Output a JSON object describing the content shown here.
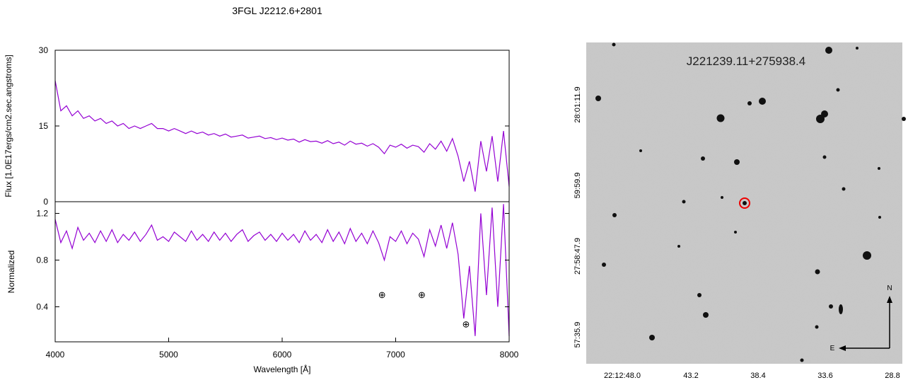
{
  "chart_data": [
    {
      "type": "line",
      "title": "3FGL J2212.6+2801",
      "ylabel": "Flux [1.0E17ergs/cm2.sec.angstroms]",
      "color": "#9400d3",
      "xlim": [
        4000,
        8000
      ],
      "ylim": [
        0,
        30
      ],
      "yticks": [
        0,
        15,
        30
      ],
      "x": [
        4000,
        4050,
        4100,
        4150,
        4200,
        4250,
        4300,
        4350,
        4400,
        4450,
        4500,
        4550,
        4600,
        4650,
        4700,
        4750,
        4800,
        4850,
        4900,
        4950,
        5000,
        5050,
        5100,
        5150,
        5200,
        5250,
        5300,
        5350,
        5400,
        5450,
        5500,
        5550,
        5600,
        5650,
        5700,
        5750,
        5800,
        5850,
        5900,
        5950,
        6000,
        6050,
        6100,
        6150,
        6200,
        6250,
        6300,
        6350,
        6400,
        6450,
        6500,
        6550,
        6600,
        6650,
        6700,
        6750,
        6800,
        6850,
        6900,
        6950,
        7000,
        7050,
        7100,
        7150,
        7200,
        7250,
        7300,
        7350,
        7400,
        7450,
        7500,
        7550,
        7600,
        7650,
        7700,
        7750,
        7800,
        7850,
        7900,
        7950,
        8000
      ],
      "values": [
        24,
        18,
        19,
        17,
        18,
        16.5,
        17,
        16,
        16.5,
        15.5,
        16,
        15,
        15.5,
        14.5,
        15,
        14.5,
        15,
        15.5,
        14.5,
        14.5,
        14,
        14.5,
        14,
        13.5,
        14,
        13.5,
        13.8,
        13.2,
        13.5,
        13,
        13.4,
        12.8,
        13,
        13.2,
        12.6,
        12.8,
        13,
        12.5,
        12.7,
        12.3,
        12.6,
        12.2,
        12.4,
        11.8,
        12.3,
        11.9,
        12,
        11.6,
        12.1,
        11.5,
        11.8,
        11.2,
        12,
        11.4,
        11.6,
        11,
        11.5,
        10.8,
        9.5,
        11.2,
        10.8,
        11.4,
        10.6,
        11.2,
        10.9,
        9.8,
        11.5,
        10.4,
        12,
        10,
        12.5,
        9,
        4,
        8,
        2,
        12,
        6,
        13,
        4,
        14,
        3
      ]
    },
    {
      "type": "line",
      "xlabel": "Wavelength [Å]",
      "ylabel": "Normalized",
      "color": "#9400d3",
      "xlim": [
        4000,
        8000
      ],
      "ylim": [
        0.1,
        1.3
      ],
      "xticks": [
        4000,
        5000,
        6000,
        7000,
        8000
      ],
      "yticks": [
        0.4,
        0.8,
        1.2
      ],
      "x": [
        4000,
        4050,
        4100,
        4150,
        4200,
        4250,
        4300,
        4350,
        4400,
        4450,
        4500,
        4550,
        4600,
        4650,
        4700,
        4750,
        4800,
        4850,
        4900,
        4950,
        5000,
        5050,
        5100,
        5150,
        5200,
        5250,
        5300,
        5350,
        5400,
        5450,
        5500,
        5550,
        5600,
        5650,
        5700,
        5750,
        5800,
        5850,
        5900,
        5950,
        6000,
        6050,
        6100,
        6150,
        6200,
        6250,
        6300,
        6350,
        6400,
        6450,
        6500,
        6550,
        6600,
        6650,
        6700,
        6750,
        6800,
        6850,
        6900,
        6950,
        7000,
        7050,
        7100,
        7150,
        7200,
        7250,
        7300,
        7350,
        7400,
        7450,
        7500,
        7550,
        7600,
        7650,
        7700,
        7750,
        7800,
        7850,
        7900,
        7950,
        8000
      ],
      "values": [
        1.15,
        0.95,
        1.05,
        0.9,
        1.08,
        0.97,
        1.03,
        0.95,
        1.05,
        0.96,
        1.06,
        0.95,
        1.02,
        0.97,
        1.04,
        0.96,
        1.02,
        1.1,
        0.97,
        1.0,
        0.96,
        1.04,
        1.0,
        0.96,
        1.05,
        0.97,
        1.02,
        0.96,
        1.04,
        0.97,
        1.03,
        0.96,
        1.02,
        1.06,
        0.96,
        1.01,
        1.04,
        0.97,
        1.02,
        0.96,
        1.03,
        0.97,
        1.02,
        0.95,
        1.05,
        0.97,
        1.02,
        0.95,
        1.06,
        0.96,
        1.04,
        0.94,
        1.07,
        0.96,
        1.03,
        0.94,
        1.05,
        0.95,
        0.8,
        1.0,
        0.96,
        1.05,
        0.94,
        1.03,
        0.98,
        0.83,
        1.06,
        0.92,
        1.1,
        0.9,
        1.12,
        0.85,
        0.3,
        0.75,
        0.15,
        1.2,
        0.5,
        1.25,
        0.4,
        1.28,
        0.15
      ],
      "annotations": [
        {
          "x": 6880,
          "y": 0.5,
          "text": "⊕"
        },
        {
          "x": 7230,
          "y": 0.5,
          "text": "⊕"
        },
        {
          "x": 7620,
          "y": 0.25,
          "text": "⊕"
        }
      ]
    }
  ],
  "finding_chart": {
    "title": "J221239.11+275938.4",
    "xticks": [
      "22:12:48.0",
      "43.2",
      "38.4",
      "33.6",
      "28.8"
    ],
    "yticks": [
      "28:01:11.9",
      "59:59.9",
      "27:58:47.9",
      "57:35.9"
    ],
    "north": "N",
    "east": "E"
  }
}
